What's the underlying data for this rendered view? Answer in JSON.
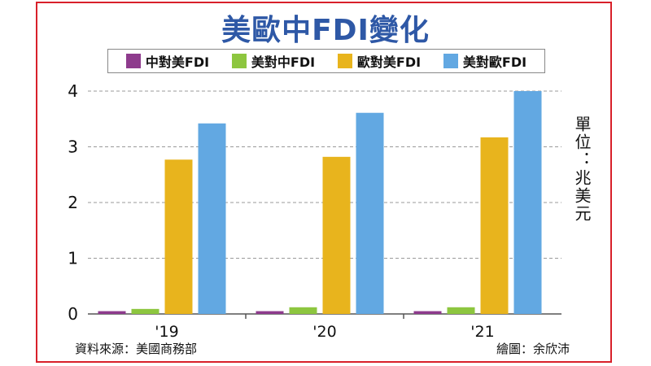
{
  "chart_data": {
    "type": "bar",
    "title": "美歐中FDI變化",
    "unit_label": "單位：兆美元",
    "categories": [
      "'19",
      "'20",
      "'21"
    ],
    "series": [
      {
        "name": "中對美FDI",
        "color": "#8e3b8d",
        "values": [
          0.05,
          0.05,
          0.05
        ]
      },
      {
        "name": "美對中FDI",
        "color": "#8dc63f",
        "values": [
          0.09,
          0.12,
          0.12
        ]
      },
      {
        "name": "歐對美FDI",
        "color": "#e8b41d",
        "values": [
          2.77,
          2.82,
          3.17
        ]
      },
      {
        "name": "美對歐FDI",
        "color": "#62a8e2",
        "values": [
          3.42,
          3.61,
          4.0
        ]
      }
    ],
    "ylim": [
      0,
      4
    ],
    "yticks": [
      0,
      1,
      2,
      3,
      4
    ],
    "grid": true,
    "legend_position": "top"
  },
  "footer": {
    "source": "資料來源：美國商務部",
    "credit": "繪圖：余欣沛"
  }
}
